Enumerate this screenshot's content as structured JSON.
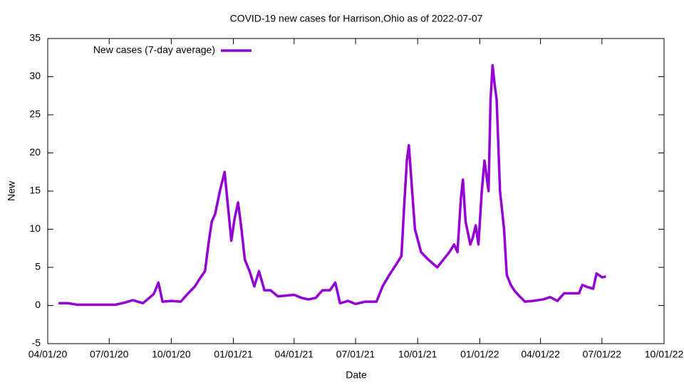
{
  "chart_data": {
    "type": "line",
    "title": "COVID-19 new cases for Harrison,Ohio as of 2022-07-07",
    "xlabel": "Date",
    "ylabel": "New",
    "legend": "top-left",
    "x": [
      "2020-04-17",
      "2020-05-01",
      "2020-05-15",
      "2020-06-01",
      "2020-06-20",
      "2020-07-10",
      "2020-07-25",
      "2020-08-05",
      "2020-08-20",
      "2020-09-05",
      "2020-09-12",
      "2020-09-18",
      "2020-10-01",
      "2020-10-15",
      "2020-10-25",
      "2020-11-05",
      "2020-11-12",
      "2020-11-20",
      "2020-11-25",
      "2020-11-30",
      "2020-12-05",
      "2020-12-12",
      "2020-12-19",
      "2020-12-24",
      "2020-12-29",
      "2021-01-03",
      "2021-01-08",
      "2021-01-13",
      "2021-01-18",
      "2021-01-25",
      "2021-02-01",
      "2021-02-08",
      "2021-02-16",
      "2021-02-25",
      "2021-03-08",
      "2021-03-20",
      "2021-04-01",
      "2021-04-12",
      "2021-04-22",
      "2021-05-03",
      "2021-05-13",
      "2021-05-24",
      "2021-06-01",
      "2021-06-08",
      "2021-06-20",
      "2021-07-01",
      "2021-07-15",
      "2021-08-01",
      "2021-08-10",
      "2021-08-20",
      "2021-08-31",
      "2021-09-07",
      "2021-09-11",
      "2021-09-15",
      "2021-09-18",
      "2021-09-22",
      "2021-09-27",
      "2021-10-06",
      "2021-10-17",
      "2021-10-30",
      "2021-11-08",
      "2021-11-17",
      "2021-11-24",
      "2021-11-29",
      "2021-12-04",
      "2021-12-07",
      "2021-12-11",
      "2021-12-18",
      "2021-12-22",
      "2021-12-26",
      "2021-12-30",
      "2022-01-04",
      "2022-01-08",
      "2022-01-11",
      "2022-01-14",
      "2022-01-17",
      "2022-01-20",
      "2022-01-23",
      "2022-01-26",
      "2022-01-31",
      "2022-02-06",
      "2022-02-10",
      "2022-02-16",
      "2022-02-21",
      "2022-03-01",
      "2022-03-09",
      "2022-03-20",
      "2022-04-05",
      "2022-04-15",
      "2022-04-26",
      "2022-05-06",
      "2022-05-28",
      "2022-06-02",
      "2022-06-10",
      "2022-06-18",
      "2022-06-23",
      "2022-07-01",
      "2022-07-07"
    ],
    "series": [
      {
        "name": "New cases (7-day average)",
        "color": "#9400d3",
        "values": [
          0.3,
          0.3,
          0.1,
          0.1,
          0.1,
          0.1,
          0.4,
          0.7,
          0.3,
          1.5,
          3.0,
          0.5,
          0.6,
          0.5,
          1.5,
          2.5,
          3.5,
          4.5,
          8,
          11,
          12,
          15,
          17.5,
          13,
          8.5,
          11.5,
          13.5,
          10,
          6,
          4.5,
          2.5,
          4.5,
          2,
          2,
          1.2,
          1.3,
          1.4,
          1,
          0.8,
          1,
          2,
          2,
          3,
          0.3,
          0.6,
          0.2,
          0.5,
          0.5,
          2.5,
          4,
          5.5,
          6.5,
          13,
          19,
          21,
          16,
          10,
          7,
          6,
          5,
          6,
          7,
          8,
          7,
          14,
          16.5,
          11,
          8,
          9,
          10.5,
          8,
          15,
          19,
          17,
          15,
          27,
          31.5,
          29,
          27,
          15,
          10,
          4,
          2.7,
          2,
          1.2,
          0.5,
          0.6,
          0.8,
          1.1,
          0.6,
          1.6,
          1.6,
          2.7,
          2.4,
          2.2,
          4.2,
          3.7,
          3.8
        ]
      }
    ],
    "xlim": [
      "2020-04-01",
      "2022-10-01"
    ],
    "xticks": [
      {
        "value": "2020-04-01",
        "label": "04/01/20"
      },
      {
        "value": "2020-07-01",
        "label": "07/01/20"
      },
      {
        "value": "2020-10-01",
        "label": "10/01/20"
      },
      {
        "value": "2021-01-01",
        "label": "01/01/21"
      },
      {
        "value": "2021-04-01",
        "label": "04/01/21"
      },
      {
        "value": "2021-07-01",
        "label": "07/01/21"
      },
      {
        "value": "2021-10-01",
        "label": "10/01/21"
      },
      {
        "value": "2022-01-01",
        "label": "01/01/22"
      },
      {
        "value": "2022-04-01",
        "label": "04/01/22"
      },
      {
        "value": "2022-07-01",
        "label": "07/01/22"
      },
      {
        "value": "2022-10-01",
        "label": "10/01/22"
      }
    ],
    "ylim": [
      -5,
      35
    ],
    "yticks": [
      -5,
      0,
      5,
      10,
      15,
      20,
      25,
      30,
      35
    ]
  }
}
